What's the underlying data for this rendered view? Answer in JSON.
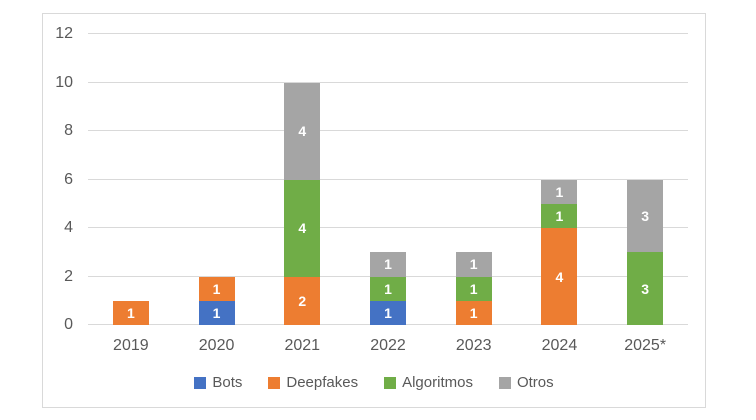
{
  "chart_data": {
    "type": "bar",
    "stacked": true,
    "title": "",
    "xlabel": "",
    "ylabel": "",
    "categories": [
      "2019",
      "2020",
      "2021",
      "2022",
      "2023",
      "2024",
      "2025*"
    ],
    "series": [
      {
        "name": "Bots",
        "color": "#4472C4",
        "values": [
          0,
          1,
          0,
          1,
          0,
          0,
          0
        ]
      },
      {
        "name": "Deepfakes",
        "color": "#ED7D31",
        "values": [
          1,
          1,
          2,
          0,
          1,
          4,
          0
        ]
      },
      {
        "name": "Algoritmos",
        "color": "#70AD47",
        "values": [
          0,
          0,
          4,
          1,
          1,
          1,
          3
        ]
      },
      {
        "name": "Otros",
        "color": "#A5A5A5",
        "values": [
          0,
          0,
          4,
          1,
          1,
          1,
          3
        ]
      }
    ],
    "totals": [
      1,
      2,
      10,
      3,
      3,
      6,
      6
    ],
    "ylim": [
      0,
      12
    ],
    "yticks": [
      0,
      2,
      4,
      6,
      8,
      10,
      12
    ],
    "grid": true,
    "legend_position": "bottom",
    "data_labels": true
  },
  "colors": {
    "background": "#FFFFFF",
    "chart_border": "#D9D9D9",
    "gridline": "#D9D9D9",
    "axis_text": "#595959",
    "data_label_text": "#FFFFFF"
  }
}
